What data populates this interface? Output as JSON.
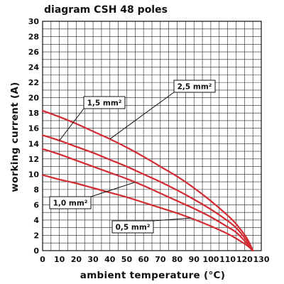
{
  "chart_data": {
    "type": "line",
    "title": "diagram CSH 48 poles",
    "xlabel": "ambient temperature (°C)",
    "ylabel": "working current (A)",
    "xlim": [
      0,
      130
    ],
    "ylim": [
      0,
      30
    ],
    "x_ticks": [
      "0",
      "10",
      "20",
      "30",
      "40",
      "50",
      "60",
      "70",
      "80",
      "90",
      "100",
      "110",
      "120",
      "130"
    ],
    "y_ticks": [
      "0",
      "2",
      "4",
      "6",
      "8",
      "10",
      "12",
      "14",
      "16",
      "18",
      "20",
      "22",
      "24",
      "26",
      "28",
      "30"
    ],
    "grid": true,
    "series": [
      {
        "name": "0,5 mm²",
        "color": "#d42a32",
        "x": [
          0,
          10,
          20,
          30,
          40,
          50,
          60,
          70,
          80,
          90,
          100,
          110,
          115,
          120,
          122,
          124,
          125
        ],
        "y": [
          9.9,
          9.3,
          8.8,
          8.2,
          7.6,
          7.0,
          6.3,
          5.6,
          4.9,
          4.1,
          3.2,
          2.2,
          1.6,
          0.9,
          0.6,
          0.2,
          0
        ]
      },
      {
        "name": "1,0 mm²",
        "color": "#d42a32",
        "x": [
          0,
          10,
          20,
          30,
          40,
          50,
          60,
          70,
          80,
          90,
          100,
          110,
          115,
          120,
          122,
          124,
          125
        ],
        "y": [
          13.3,
          12.6,
          11.8,
          11.0,
          10.2,
          9.4,
          8.5,
          7.5,
          6.5,
          5.5,
          4.4,
          3.1,
          2.4,
          1.3,
          0.8,
          0.3,
          0
        ]
      },
      {
        "name": "1,5 mm²",
        "color": "#d42a32",
        "x": [
          0,
          10,
          20,
          30,
          40,
          50,
          60,
          70,
          80,
          90,
          100,
          110,
          115,
          120,
          122,
          124,
          125
        ],
        "y": [
          15.1,
          14.4,
          13.6,
          12.8,
          11.9,
          11.0,
          10.0,
          9.0,
          7.9,
          6.7,
          5.4,
          3.9,
          3.0,
          1.7,
          1.1,
          0.4,
          0
        ]
      },
      {
        "name": "2,5 mm²",
        "color": "#d42a32",
        "x": [
          0,
          10,
          20,
          30,
          40,
          50,
          60,
          70,
          80,
          90,
          100,
          110,
          115,
          120,
          122,
          124,
          125
        ],
        "y": [
          18.3,
          17.5,
          16.6,
          15.6,
          14.6,
          13.5,
          12.3,
          11.0,
          9.7,
          8.2,
          6.5,
          4.6,
          3.5,
          2.1,
          1.4,
          0.5,
          0
        ]
      }
    ],
    "callouts": [
      {
        "label": "2,5 mm²",
        "series_index": 3
      },
      {
        "label": "1,5 mm²",
        "series_index": 2
      },
      {
        "label": "1,0 mm²",
        "series_index": 1
      },
      {
        "label": "0,5 mm²",
        "series_index": 0
      }
    ]
  }
}
